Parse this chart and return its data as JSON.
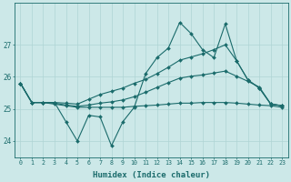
{
  "title": "",
  "xlabel": "Humidex (Indice chaleur)",
  "bg_color": "#cce8e8",
  "grid_color": "#afd4d4",
  "line_color": "#1a6b6b",
  "xlim": [
    -0.5,
    23.5
  ],
  "ylim": [
    23.5,
    28.3
  ],
  "yticks": [
    24,
    25,
    26,
    27
  ],
  "xticks": [
    0,
    1,
    2,
    3,
    4,
    5,
    6,
    7,
    8,
    9,
    10,
    11,
    12,
    13,
    14,
    15,
    16,
    17,
    18,
    19,
    20,
    21,
    22,
    23
  ],
  "series_zigzag": [
    25.8,
    25.2,
    25.2,
    25.2,
    24.6,
    24.0,
    24.8,
    24.75,
    23.85,
    24.6,
    25.05,
    26.1,
    26.6,
    26.9,
    27.7,
    27.35,
    26.85,
    26.6,
    27.65,
    26.5,
    25.9,
    25.65,
    25.15,
    25.1
  ],
  "series_upper": [
    25.8,
    25.2,
    25.2,
    25.2,
    25.18,
    25.15,
    25.3,
    25.45,
    25.55,
    25.65,
    25.8,
    25.92,
    26.1,
    26.3,
    26.52,
    26.62,
    26.72,
    26.85,
    27.0,
    26.5,
    25.9,
    25.65,
    25.15,
    25.1
  ],
  "series_middle": [
    25.8,
    25.2,
    25.2,
    25.18,
    25.12,
    25.08,
    25.12,
    25.18,
    25.22,
    25.28,
    25.38,
    25.52,
    25.67,
    25.82,
    25.96,
    26.02,
    26.06,
    26.12,
    26.18,
    26.02,
    25.86,
    25.68,
    25.15,
    25.1
  ],
  "series_flat": [
    25.8,
    25.2,
    25.2,
    25.15,
    25.1,
    25.05,
    25.05,
    25.05,
    25.05,
    25.05,
    25.08,
    25.1,
    25.12,
    25.15,
    25.18,
    25.18,
    25.2,
    25.2,
    25.2,
    25.18,
    25.15,
    25.12,
    25.1,
    25.05
  ]
}
